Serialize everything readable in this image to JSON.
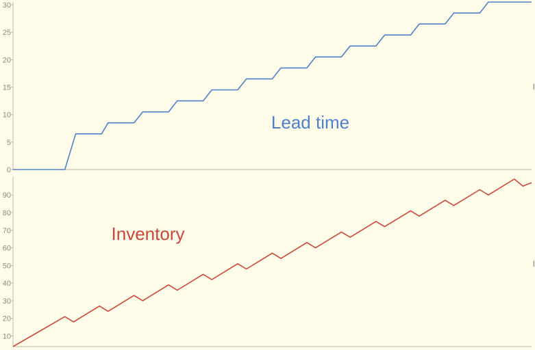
{
  "chart_data": [
    {
      "type": "line",
      "title": "Lead time",
      "xlabel": "",
      "ylabel": "",
      "ylim": [
        0,
        30
      ],
      "yticks": [
        0,
        5,
        10,
        15,
        20,
        25,
        30
      ],
      "grid": false,
      "color": "#4f7fc9",
      "series": [
        {
          "x": [
            0,
            6,
            7.25,
            10.25,
            11,
            14,
            15,
            18,
            19,
            22,
            23,
            26,
            27,
            30,
            31,
            34,
            35,
            38,
            39,
            42,
            43,
            46,
            47,
            50,
            51,
            54,
            55,
            58,
            59,
            60
          ],
          "values": [
            0,
            0,
            6.5,
            6.5,
            8.5,
            8.5,
            10.5,
            10.5,
            12.5,
            12.5,
            14.5,
            14.5,
            16.5,
            16.5,
            18.5,
            18.5,
            20.5,
            20.5,
            22.5,
            22.5,
            24.5,
            24.5,
            26.5,
            26.5,
            28.5,
            28.5,
            30.5,
            30.5,
            30.5,
            30.5
          ]
        }
      ]
    },
    {
      "type": "line",
      "title": "Inventory",
      "xlabel": "",
      "ylabel": "",
      "ylim": [
        4,
        99
      ],
      "yticks": [
        10,
        20,
        30,
        40,
        50,
        60,
        70,
        80,
        90
      ],
      "grid": false,
      "color": "#c8473a",
      "series": [
        {
          "x": [
            0,
            6,
            7,
            10,
            11,
            14,
            15,
            18,
            19,
            22,
            23,
            26,
            27,
            30,
            31,
            34,
            35,
            38,
            39,
            42,
            43,
            46,
            47,
            50,
            51,
            54,
            55,
            58,
            59,
            60
          ],
          "values": [
            4,
            21,
            18,
            27,
            24,
            33,
            30,
            39,
            36,
            45,
            42,
            51,
            48,
            57,
            54,
            63,
            60,
            69,
            66,
            75,
            72,
            81,
            78,
            87,
            84,
            93,
            90,
            99,
            95,
            97
          ]
        }
      ]
    }
  ],
  "edge_labels": [
    "l",
    "l"
  ]
}
